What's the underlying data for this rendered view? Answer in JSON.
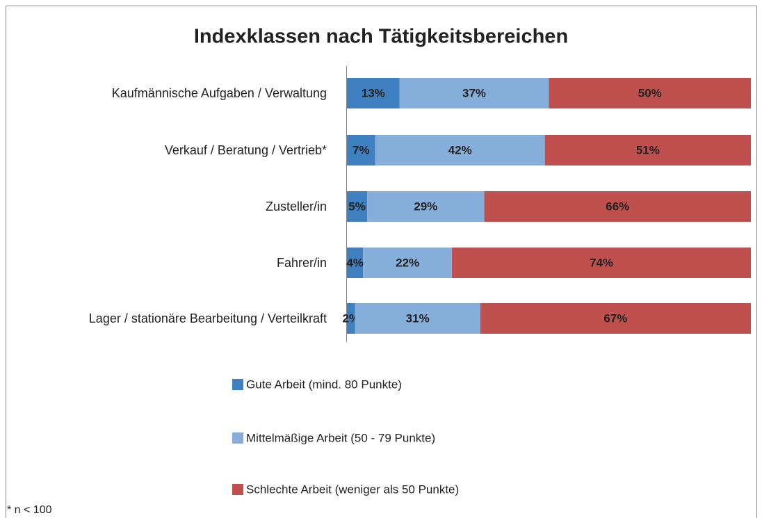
{
  "chart_data": {
    "type": "stacked-barh",
    "title": "Indexklassen nach Tätigkeitsbereichen",
    "categories": [
      "Kaufmännische Aufgaben / Verwaltung",
      "Verkauf / Beratung / Vertrieb*",
      "Zusteller/in",
      "Fahrer/in",
      "Lager / stationäre Bearbeitung / Verteilkraft"
    ],
    "series": [
      {
        "name": "Gute Arbeit (mind. 80 Punkte)",
        "color": "#3f80c0",
        "values": [
          13,
          7,
          5,
          4,
          2
        ],
        "value_labels": [
          "13%",
          "7%",
          "5%",
          "4%",
          "2%"
        ]
      },
      {
        "name": "Mittelmäßige Arbeit (50 - 79 Punkte)",
        "color": "#86aedb",
        "values": [
          37,
          42,
          29,
          22,
          31
        ],
        "value_labels": [
          "37%",
          "42%",
          "29%",
          "22%",
          "31%"
        ]
      },
      {
        "name": "Schlechte Arbeit (weniger als 50 Punkte)",
        "color": "#c0504d",
        "values": [
          50,
          51,
          66,
          74,
          67
        ],
        "value_labels": [
          "50%",
          "51%",
          "66%",
          "74%",
          "67%"
        ]
      }
    ],
    "xlim": [
      0,
      100
    ],
    "legend": "bottom",
    "footnote": "* n < 100"
  }
}
